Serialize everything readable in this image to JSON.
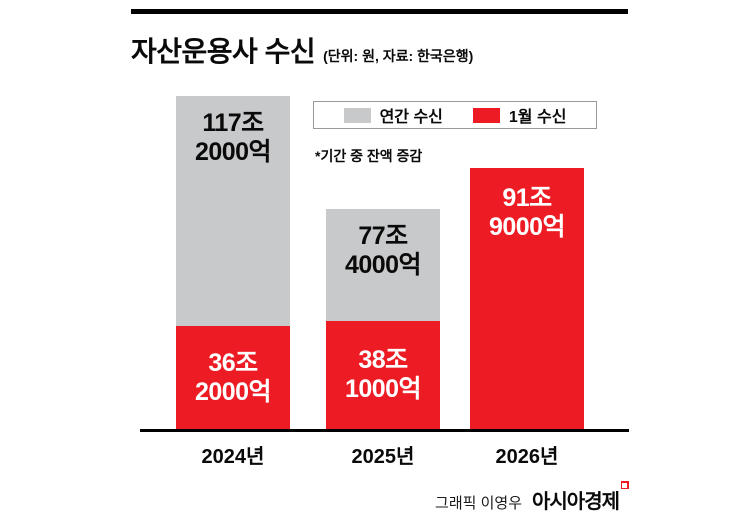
{
  "header": {
    "title": "자산운용사 수신",
    "subtitle": "(단위: 원, 자료: 한국은행)"
  },
  "legend": {
    "annual_label": "연간 수신",
    "january_label": "1월 수신"
  },
  "footnote": "*기간 중 잔액 증감",
  "credit": {
    "prefix": "그래픽 이영우",
    "brand": "아시아경제"
  },
  "colors": {
    "red": "#ed1c24",
    "gray": "#c8c9cb",
    "ink": "#0a0a0a"
  },
  "chart_data": {
    "type": "bar",
    "stacked": true,
    "title": "자산운용사 수신",
    "unit": "조 원",
    "categories": [
      "2024년",
      "2025년",
      "2026년"
    ],
    "ylim": [
      0,
      117.2
    ],
    "legend_position": "top",
    "grid": false,
    "series": [
      {
        "name": "연간 수신",
        "color_key": "gray",
        "values": [
          117.2,
          77.4,
          null
        ]
      },
      {
        "name": "1월 수신",
        "color_key": "red",
        "values": [
          36.2,
          38.1,
          91.9
        ]
      }
    ],
    "bars": [
      {
        "category": "2024년",
        "total": 117.2,
        "total_label": [
          "117조",
          "2000억"
        ],
        "january": 36.2,
        "january_label": [
          "36조",
          "2000억"
        ]
      },
      {
        "category": "2025년",
        "total": 77.4,
        "total_label": [
          "77조",
          "4000억"
        ],
        "january": 38.1,
        "january_label": [
          "38조",
          "1000억"
        ]
      },
      {
        "category": "2026년",
        "total": null,
        "total_label": null,
        "january": 91.9,
        "january_label": [
          "91조",
          "9000억"
        ]
      }
    ]
  }
}
